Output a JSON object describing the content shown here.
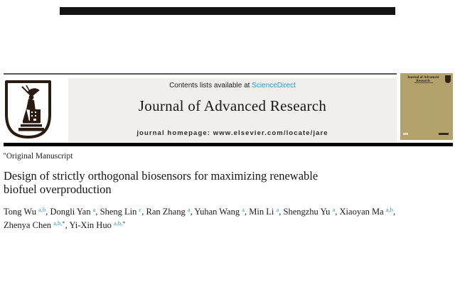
{
  "masthead": {
    "contents_line": {
      "prefix": "Contents lists available at ",
      "link_text": "ScienceDirect"
    },
    "journal_title": "Journal of Advanced Research",
    "homepage_line": "journal homepage: www.elsevier.com/locate/jare",
    "logo_icon": "cairo-university-emblem",
    "cover": {
      "title": "Journal of Advanced Research"
    }
  },
  "article": {
    "type_label": "\"Original Manuscript",
    "title_lines": [
      "Design of strictly orthogonal biosensors for maximizing renewable",
      "biofuel overproduction"
    ],
    "corresponding_mark": "*",
    "authors": [
      {
        "name": "Tong Wu",
        "sup": "a,b",
        "corresponding": false,
        "tail": ", "
      },
      {
        "name": "Dongli Yan",
        "sup": "a",
        "corresponding": false,
        "tail": ", "
      },
      {
        "name": "Sheng Lin",
        "sup": "c",
        "corresponding": false,
        "tail": ", "
      },
      {
        "name": "Ran Zhang",
        "sup": "a",
        "corresponding": false,
        "tail": ", "
      },
      {
        "name": "Yuhan Wang",
        "sup": "a",
        "corresponding": false,
        "tail": ", "
      },
      {
        "name": "Min Li",
        "sup": "a",
        "corresponding": false,
        "tail": ", "
      },
      {
        "name": "Shengzhu Yu",
        "sup": "a",
        "corresponding": false,
        "tail": ", "
      },
      {
        "name": "Xiaoyan Ma",
        "sup": "a,b",
        "corresponding": false,
        "tail": ",",
        "break_after": true
      },
      {
        "name": "Zhenya Chen",
        "sup": "a,b,",
        "corresponding": true,
        "tail": ", "
      },
      {
        "name": "Yi-Xin Huo",
        "sup": "a,b,",
        "corresponding": true,
        "tail": ""
      }
    ]
  },
  "colors": {
    "link_blue": "#1f9cd9",
    "superscript_blue": "#2e96cc",
    "header_box_bg": "#f0efec",
    "cover_tan": "#b3a26c",
    "logo_ink": "#2a1a10",
    "redaction_black": "#141414"
  }
}
